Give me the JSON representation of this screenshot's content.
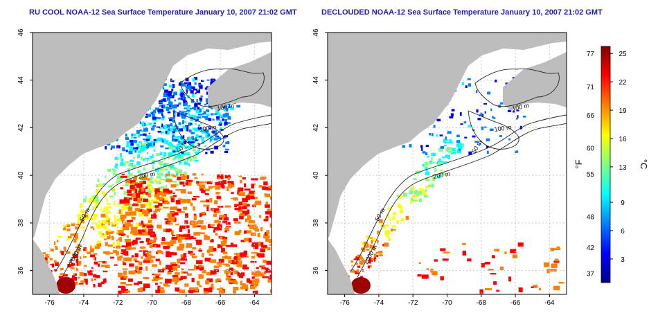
{
  "panels": [
    {
      "id": "left",
      "title": "RU COOL NOAA-12 Sea Surface Temperature January 10, 2007 21:02 GMT",
      "cloud_mask": false
    },
    {
      "id": "right",
      "title": "DECLOUDED NOAA-12 Sea Surface Temperature January 10, 2007 21:02 GMT",
      "cloud_mask": true
    }
  ],
  "map": {
    "lon_range": [
      -77,
      -63
    ],
    "lat_range": [
      35,
      46
    ],
    "x_ticks": [
      "-76",
      "-74",
      "-72",
      "-70",
      "-68",
      "-66",
      "-64"
    ],
    "y_ticks": [
      "36",
      "38",
      "40",
      "42",
      "44",
      "46"
    ],
    "land_color": "#bdbdbd",
    "grid": true,
    "contour_labels": [
      "100 m",
      "100 m",
      "50 m",
      "200 m",
      "50 m",
      "2000 m"
    ]
  },
  "colorbar": {
    "left_unit": "°F",
    "right_unit": "°C",
    "f_ticks": [
      "77",
      "71",
      "66",
      "60",
      "55",
      "48",
      "42",
      "37"
    ],
    "c_ticks": [
      "25",
      "22",
      "19",
      "16",
      "13",
      "9",
      "6",
      "3"
    ],
    "colors": [
      "#00008b",
      "#0000ff",
      "#0080ff",
      "#00ffff",
      "#80ff80",
      "#ffff00",
      "#ff8000",
      "#ff0000",
      "#800000"
    ]
  }
}
